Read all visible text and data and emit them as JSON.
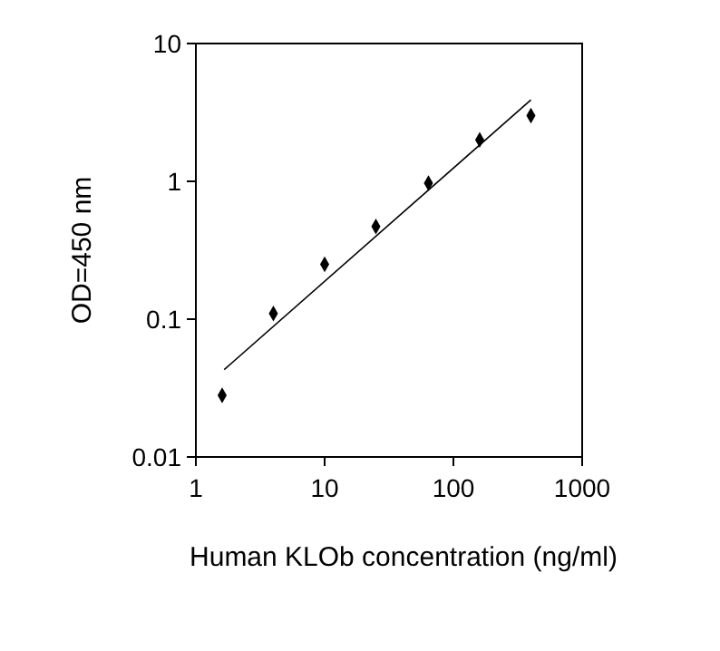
{
  "chart_data": {
    "type": "scatter",
    "xlabel": "Human KLOb concentration (ng/ml)",
    "ylabel": "OD=450 nm",
    "log": "xy",
    "xlim": [
      1,
      1000
    ],
    "ylim": [
      0.01,
      10
    ],
    "xticks": [
      1,
      10,
      100,
      1000
    ],
    "yticks": [
      0.01,
      0.1,
      1,
      10
    ],
    "grid": false,
    "marker": "diamond",
    "series": [
      {
        "color": "#000000",
        "x": [
          1.6,
          4,
          10,
          25,
          64,
          160,
          400
        ],
        "values": [
          0.028,
          0.11,
          0.25,
          0.47,
          0.97,
          2.0,
          3.0
        ]
      },
      {
        "type": "line",
        "color": "#000000",
        "line_style": "solid",
        "marker": "none",
        "x": [
          1.66,
          400
        ],
        "values": [
          0.043,
          3.9
        ]
      }
    ]
  }
}
